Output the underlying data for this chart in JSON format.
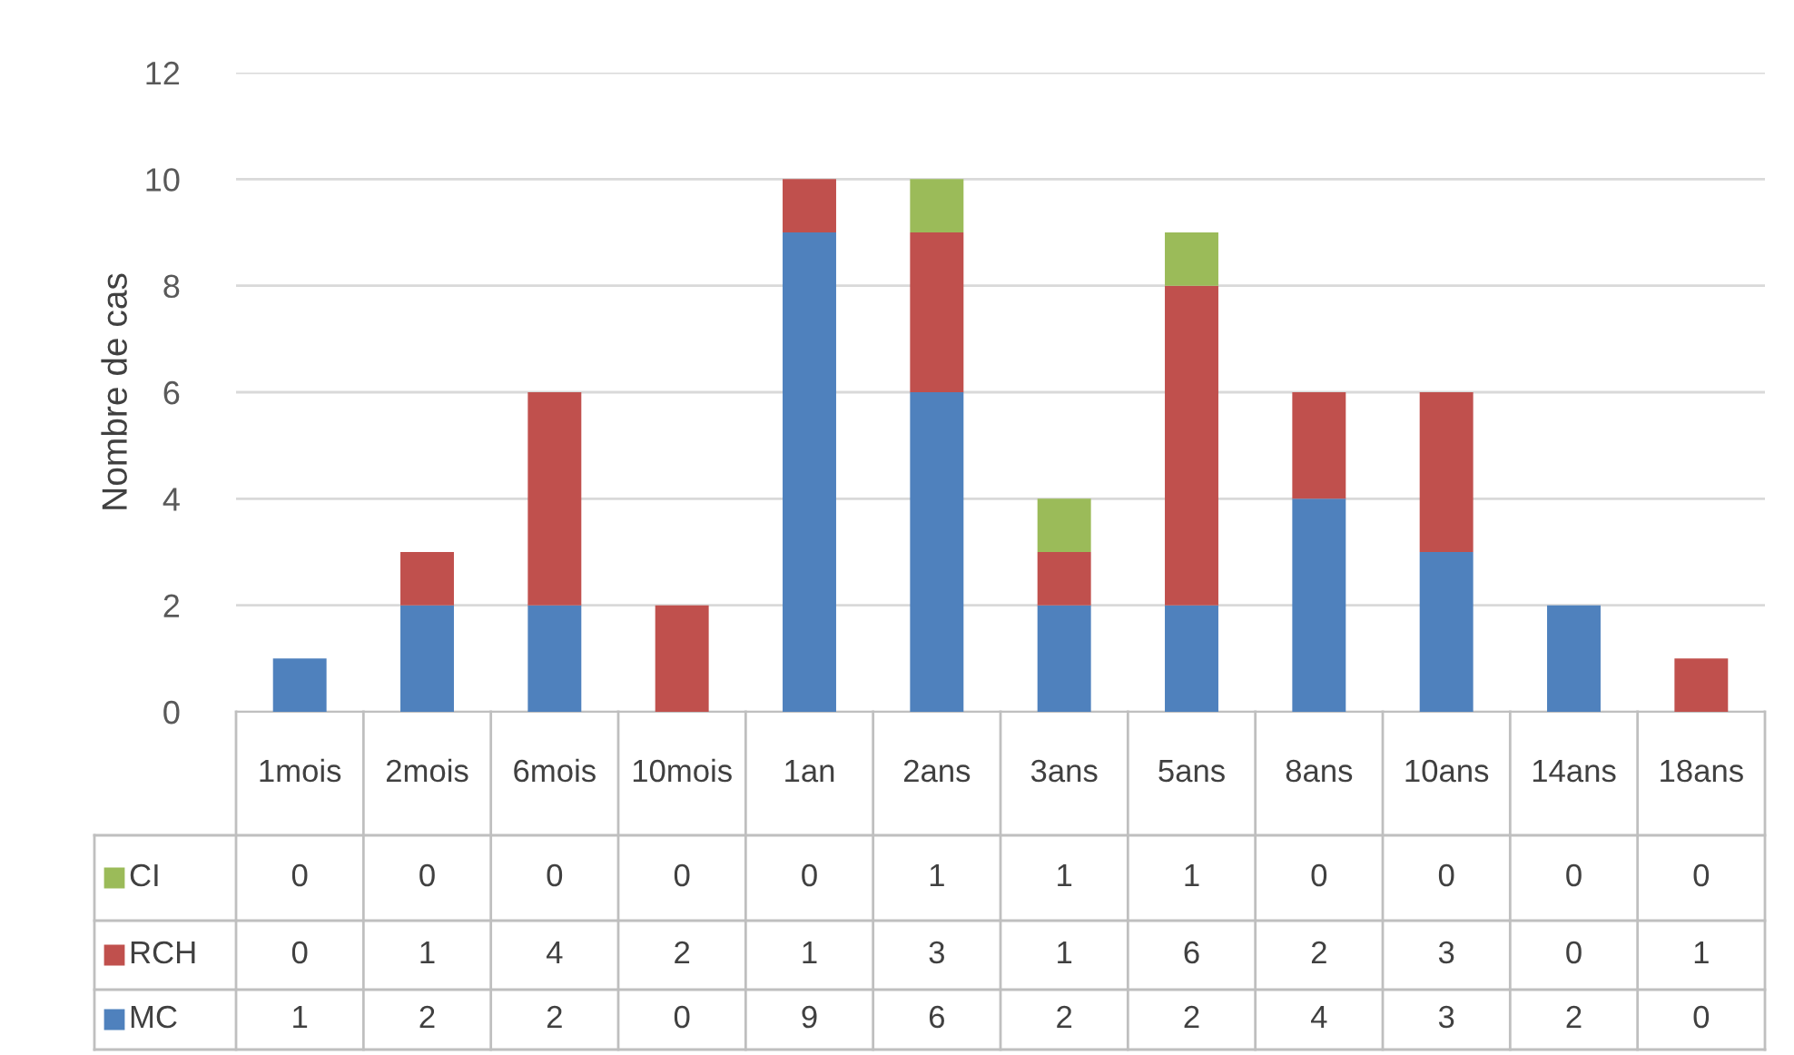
{
  "chart_data": {
    "type": "bar",
    "stacked": true,
    "ylabel": "Nombre de cas",
    "categories": [
      "1mois",
      "2mois",
      "6mois",
      "10mois",
      "1an",
      "2ans",
      "3ans",
      "5ans",
      "8ans",
      "10ans",
      "14ans",
      "18ans"
    ],
    "series": [
      {
        "name": "MC",
        "color": "#4f81bd",
        "values": [
          1,
          2,
          2,
          0,
          9,
          6,
          2,
          2,
          4,
          3,
          2,
          0
        ]
      },
      {
        "name": "RCH",
        "color": "#c0504d",
        "values": [
          0,
          1,
          4,
          2,
          1,
          3,
          1,
          6,
          2,
          3,
          0,
          1
        ]
      },
      {
        "name": "CI",
        "color": "#9bbb59",
        "values": [
          0,
          0,
          0,
          0,
          0,
          1,
          1,
          1,
          0,
          0,
          0,
          0
        ]
      }
    ],
    "ylim": [
      0,
      12
    ],
    "yticks": [
      0,
      2,
      4,
      6,
      8,
      10,
      12
    ],
    "grid": "y",
    "legend": "bottom",
    "data_labels": true
  }
}
